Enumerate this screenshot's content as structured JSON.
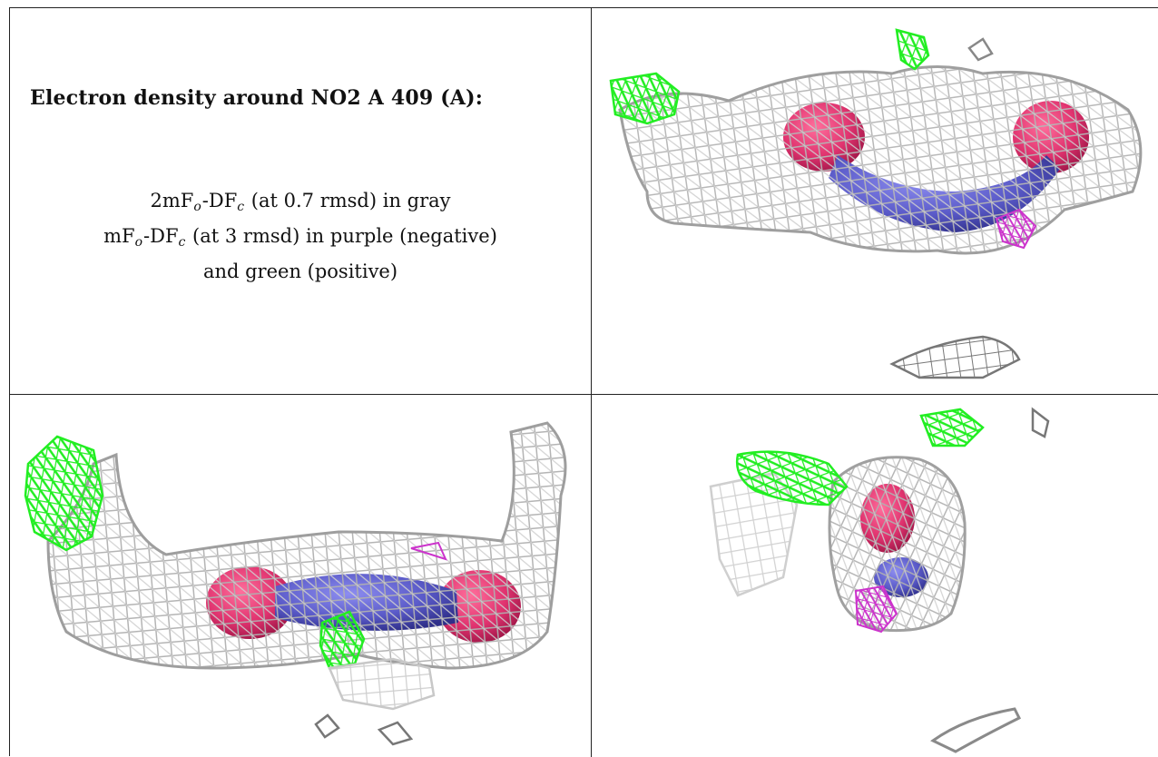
{
  "caption": {
    "title": "Electron density around NO2 A 409 (A):",
    "line1": {
      "prefix": "2mF",
      "sub1": "o",
      "mid": "-DF",
      "sub2": "c",
      "suffix": " (at 0.7 rmsd) in gray"
    },
    "line2": {
      "prefix": "mF",
      "sub1": "o",
      "mid": "-DF",
      "sub2": "c",
      "suffix": " (at 3 rmsd) in purple (negative)"
    },
    "line3": "and green (positive)"
  },
  "colors": {
    "mesh_2fofc": "#b8b8b8",
    "mesh_2fofc_dark": "#6f6f6f",
    "mesh_positive": "#22ee22",
    "mesh_negative": "#cc33cc",
    "oxygen": "#e0336f",
    "nitrogen": "#5a5ac8"
  }
}
